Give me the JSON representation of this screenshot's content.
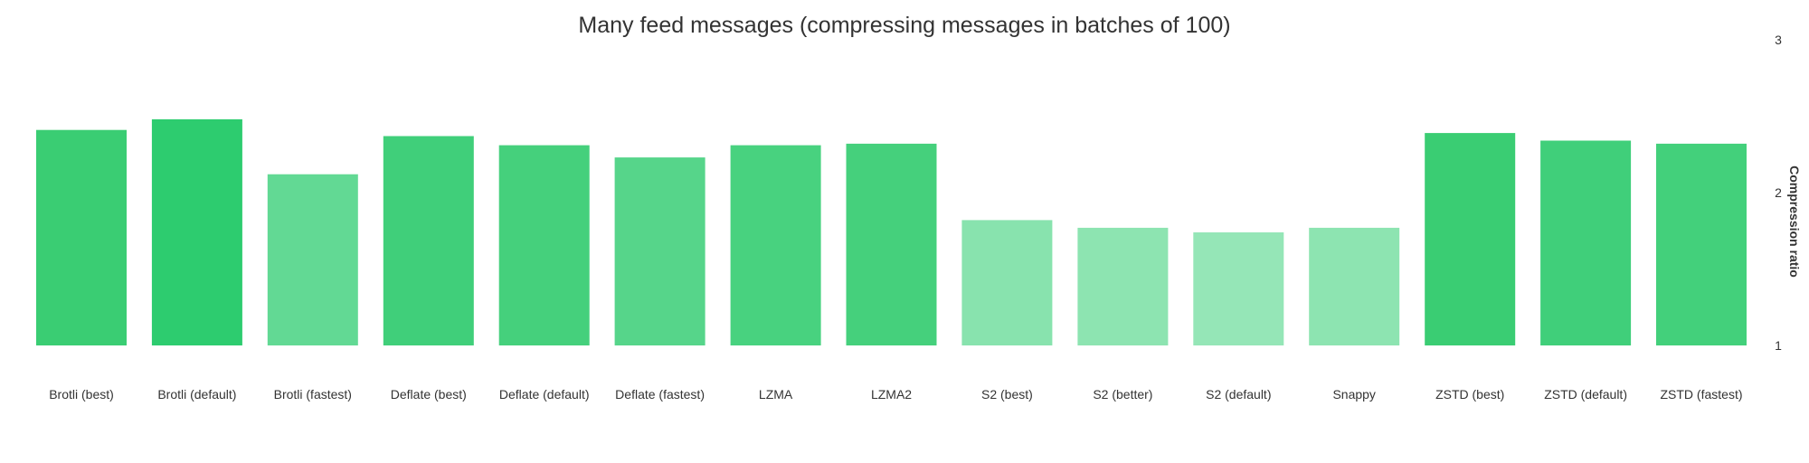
{
  "chart_data": {
    "type": "bar",
    "title": "Many feed messages (compressing messages in batches of 100)",
    "xlabel": "",
    "ylabel": "Compression ratio",
    "ylim": [
      1,
      3
    ],
    "yticks": [
      "1",
      "2",
      "3"
    ],
    "y_axis_position": "right",
    "grid": false,
    "categories": [
      "Brotli (best)",
      "Brotli (default)",
      "Brotli (fastest)",
      "Deflate (best)",
      "Deflate (default)",
      "Deflate (fastest)",
      "LZMA",
      "LZMA2",
      "S2 (best)",
      "S2 (better)",
      "S2 (default)",
      "Snappy",
      "ZSTD (best)",
      "ZSTD (default)",
      "ZSTD (fastest)"
    ],
    "values": [
      2.41,
      2.48,
      2.12,
      2.37,
      2.31,
      2.23,
      2.31,
      2.32,
      1.82,
      1.77,
      1.74,
      1.77,
      2.39,
      2.34,
      2.32
    ],
    "bar_colors": [
      "#3acd73",
      "#2dcc6f",
      "#62d994",
      "#40cf7a",
      "#45d07c",
      "#56d58a",
      "#48d27f",
      "#45d07c",
      "#88e3ae",
      "#8de4b1",
      "#95e6b7",
      "#8de4b1",
      "#3acd73",
      "#40cf7a",
      "#43d07b"
    ]
  }
}
